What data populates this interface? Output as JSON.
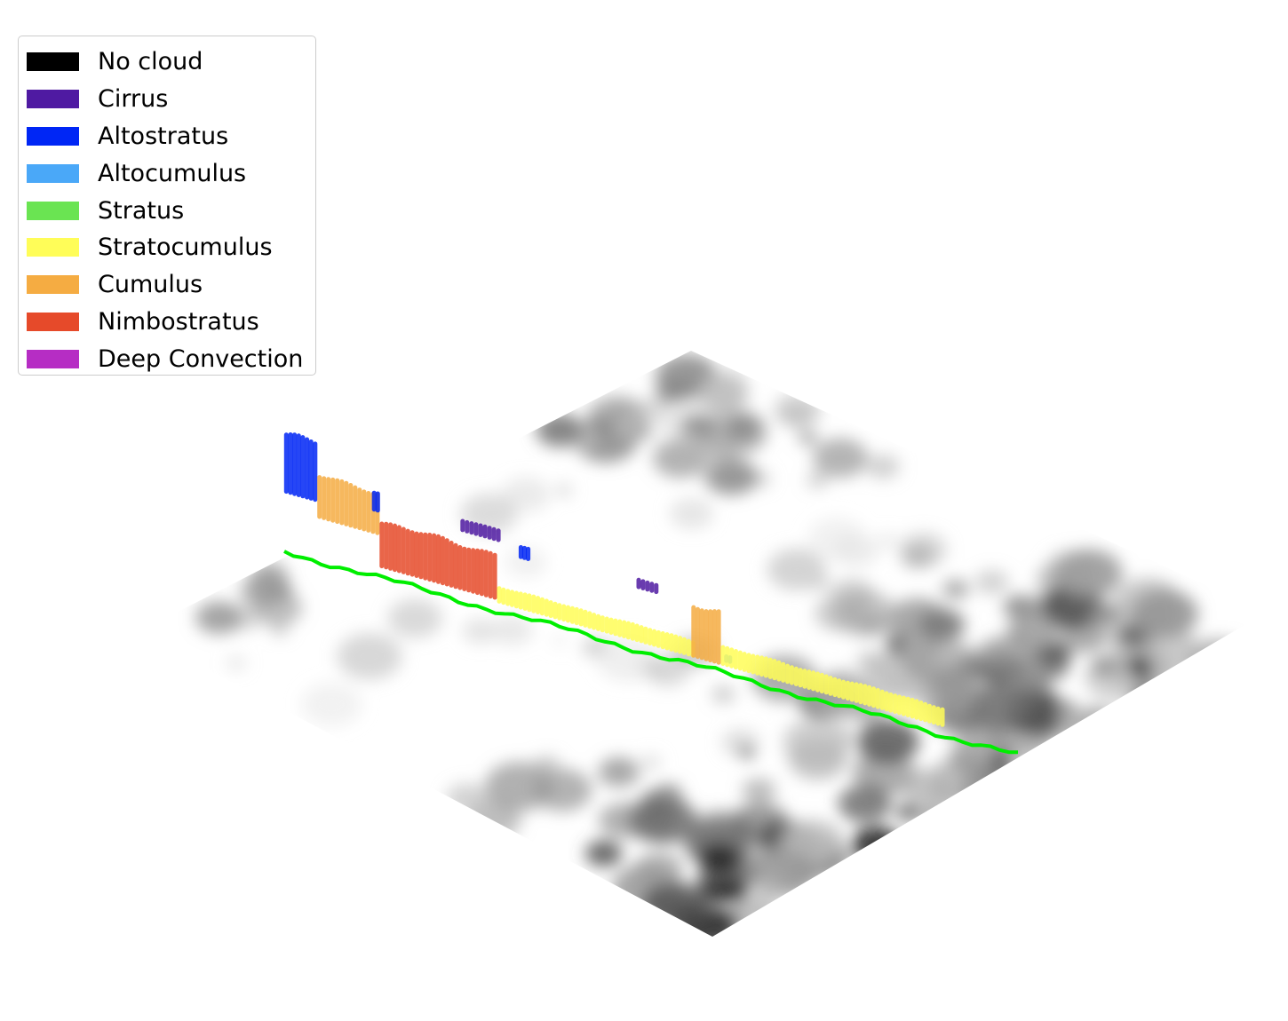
{
  "chart_data": {
    "type": "3d-curtain",
    "title": "",
    "xlabel": "",
    "ylabel": "",
    "zlabel": "",
    "axes_visible": false,
    "legend_placement": "top-left",
    "classes": [
      {
        "name": "No cloud",
        "color": "#000000"
      },
      {
        "name": "Cirrus",
        "color": "#4f1aa2"
      },
      {
        "name": "Altostratus",
        "color": "#0026f5"
      },
      {
        "name": "Altocumulus",
        "color": "#4aa8f8"
      },
      {
        "name": "Stratus",
        "color": "#6ae452"
      },
      {
        "name": "Stratocumulus",
        "color": "#fffd58"
      },
      {
        "name": "Cumulus",
        "color": "#f5ac42"
      },
      {
        "name": "Nimbostratus",
        "color": "#e64a2a"
      },
      {
        "name": "Deep Convection",
        "color": "#b62dc4"
      }
    ],
    "track_color": "#00ee00",
    "surface": "grayscale terrain field (dark = high)",
    "cloud_profile": {
      "s_units": "fraction of track length",
      "h_units": "relative height (0-1)",
      "segments": [
        {
          "class": "Altostratus",
          "s": [
            0.0,
            0.045
          ],
          "bottom": 0.4,
          "top": 0.82
        },
        {
          "class": "Cumulus",
          "s": [
            0.045,
            0.13
          ],
          "bottom": 0.28,
          "top": 0.58
        },
        {
          "class": "Altostratus",
          "s": [
            0.12,
            0.13
          ],
          "bottom": 0.45,
          "top": 0.58
        },
        {
          "class": "Nimbostratus",
          "s": [
            0.13,
            0.29
          ],
          "bottom": 0.04,
          "top": 0.36
        },
        {
          "class": "Cirrus",
          "s": [
            0.24,
            0.295
          ],
          "bottom": 0.48,
          "top": 0.55
        },
        {
          "class": "Altostratus",
          "s": [
            0.32,
            0.335
          ],
          "bottom": 0.4,
          "top": 0.47
        },
        {
          "class": "Stratocumulus",
          "s": [
            0.29,
            0.56
          ],
          "bottom": 0.02,
          "top": 0.12
        },
        {
          "class": "Cirrus",
          "s": [
            0.48,
            0.51
          ],
          "bottom": 0.42,
          "top": 0.47
        },
        {
          "class": "Cumulus",
          "s": [
            0.555,
            0.595
          ],
          "bottom": 0.02,
          "top": 0.4
        },
        {
          "class": "Altocumulus",
          "s": [
            0.6,
            0.61
          ],
          "bottom": 0.05,
          "top": 0.08
        },
        {
          "class": "Stratocumulus",
          "s": [
            0.595,
            0.9
          ],
          "bottom": 0.02,
          "top": 0.14
        }
      ]
    }
  }
}
